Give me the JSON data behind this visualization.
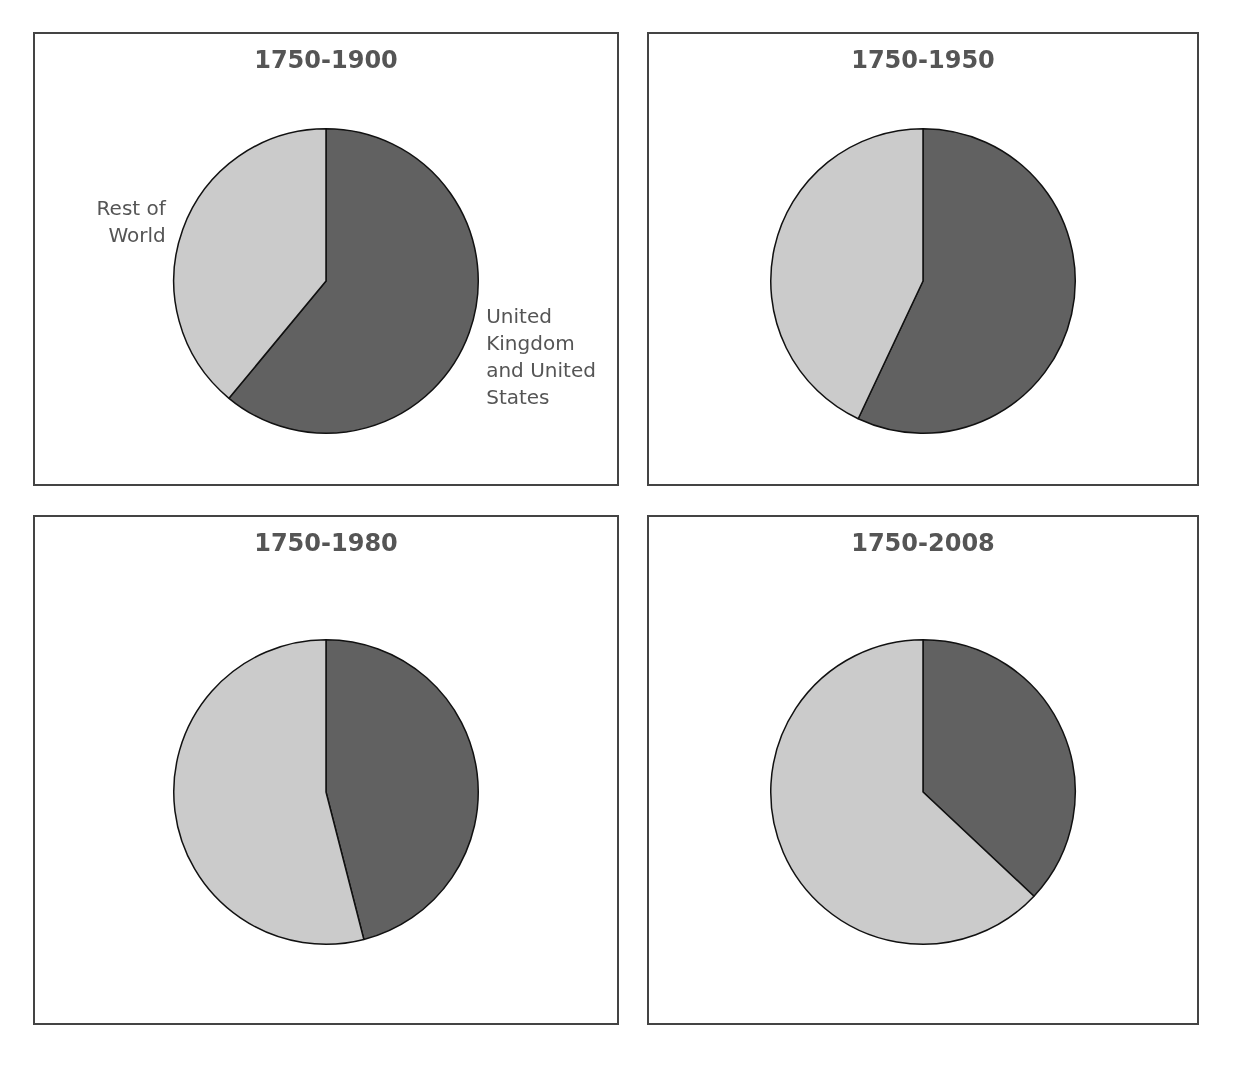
{
  "chart_data": [
    {
      "type": "pie",
      "title": "1750-1900",
      "categories": [
        "United Kingdom and United States",
        "Rest of World"
      ],
      "values": [
        61,
        39
      ],
      "colors": [
        "#616161",
        "#cbcbcb"
      ]
    },
    {
      "type": "pie",
      "title": "1750-1950",
      "categories": [
        null,
        null
      ],
      "values": [
        57,
        43
      ],
      "colors": [
        "#616161",
        "#cbcbcb"
      ]
    },
    {
      "type": "pie",
      "title": "1750-1980",
      "categories": [
        null,
        null
      ],
      "values": [
        46,
        54
      ],
      "colors": [
        "#616161",
        "#cbcbcb"
      ]
    },
    {
      "type": "pie",
      "title": "1750-2008",
      "categories": [
        null,
        null
      ],
      "values": [
        37,
        63
      ],
      "colors": [
        "#616161",
        "#cbcbcb"
      ]
    }
  ]
}
